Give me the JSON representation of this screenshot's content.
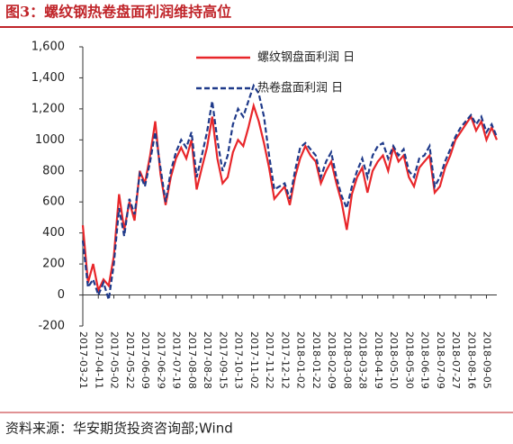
{
  "chart_data": {
    "type": "line",
    "title": "图3：螺纹钢热卷盘面利润维持高位",
    "source": "资料来源：华安期货投资咨询部;Wind",
    "categories": [
      "2017-03-21",
      null,
      null,
      "2017-04-11",
      null,
      null,
      "2017-05-02",
      null,
      null,
      "2017-05-22",
      null,
      null,
      "2017-06-09",
      null,
      null,
      "2017-06-29",
      null,
      null,
      "2017-07-19",
      null,
      null,
      "2017-08-08",
      null,
      null,
      "2017-08-28",
      null,
      null,
      "2017-09-15",
      null,
      null,
      "2017-10-13",
      null,
      null,
      "2017-11-02",
      null,
      null,
      "2017-11-22",
      null,
      null,
      "2017-12-12",
      null,
      null,
      "2018-01-02",
      null,
      null,
      "2018-01-22",
      null,
      null,
      "2018-02-09",
      null,
      null,
      "2018-03-08",
      null,
      null,
      "2018-03-28",
      null,
      null,
      "2018-04-19",
      null,
      null,
      "2018-05-10",
      null,
      null,
      "2018-05-30",
      null,
      null,
      "2018-06-19",
      null,
      null,
      "2018-07-09",
      null,
      null,
      "2018-07-27",
      null,
      null,
      "2018-08-16",
      null,
      null,
      "2018-09-05",
      null,
      null
    ],
    "series": [
      {
        "name": "螺纹钢盘面利润 日",
        "color": "#e8262a",
        "style": "solid",
        "values": [
          450,
          80,
          200,
          30,
          100,
          60,
          250,
          650,
          420,
          600,
          480,
          800,
          720,
          900,
          1120,
          780,
          580,
          760,
          880,
          950,
          880,
          1000,
          680,
          820,
          950,
          1150,
          880,
          720,
          760,
          920,
          1000,
          960,
          1080,
          1220,
          1120,
          980,
          820,
          620,
          660,
          700,
          580,
          760,
          880,
          960,
          900,
          860,
          720,
          800,
          860,
          720,
          600,
          420,
          650,
          760,
          820,
          660,
          800,
          860,
          900,
          800,
          950,
          860,
          900,
          760,
          700,
          820,
          860,
          900,
          660,
          700,
          820,
          900,
          1000,
          1050,
          1100,
          1150,
          1060,
          1120,
          1000,
          1080,
          1000
        ]
      },
      {
        "name": "热卷盘面利润 日",
        "color": "#1f3a8a",
        "style": "dashed",
        "values": [
          350,
          50,
          100,
          0,
          80,
          -30,
          200,
          560,
          380,
          620,
          520,
          780,
          700,
          860,
          1050,
          820,
          600,
          800,
          920,
          1000,
          950,
          1050,
          760,
          900,
          1050,
          1250,
          1000,
          800,
          900,
          1100,
          1200,
          1150,
          1250,
          1350,
          1300,
          1150,
          900,
          680,
          700,
          720,
          620,
          800,
          950,
          980,
          940,
          900,
          760,
          860,
          920,
          760,
          640,
          560,
          700,
          800,
          880,
          760,
          900,
          960,
          980,
          880,
          960,
          900,
          940,
          800,
          760,
          880,
          900,
          960,
          700,
          760,
          860,
          940,
          1020,
          1080,
          1120,
          1160,
          1100,
          1150,
          1050,
          1100,
          1020
        ]
      }
    ],
    "ylim": [
      -200,
      1600
    ],
    "yticks": [
      -200,
      0,
      200,
      400,
      600,
      800,
      1000,
      {
        "value": 1200,
        "label": "1,200"
      },
      {
        "value": 1400,
        "label": "1,400"
      },
      {
        "value": 1600,
        "label": "1,600"
      }
    ],
    "grid": false
  }
}
